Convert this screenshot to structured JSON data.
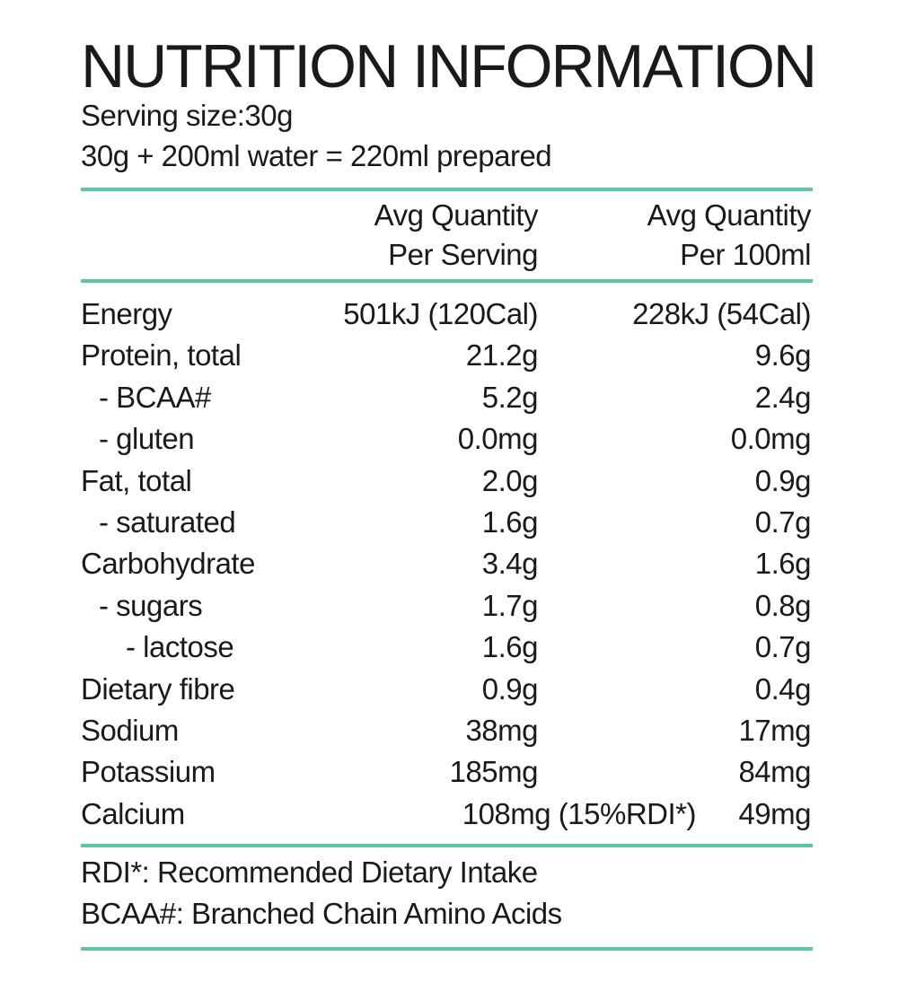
{
  "label": {
    "title": "NUTRITION INFORMATION",
    "serving_size": "Serving size:30g",
    "preparation": "30g + 200ml water = 220ml prepared",
    "accent_color": "#5ec6a8"
  },
  "columns": {
    "per_serving_line1": "Avg Quantity",
    "per_serving_line2": "Per Serving",
    "per_100ml_line1": "Avg Quantity",
    "per_100ml_line2": "Per 100ml"
  },
  "rows": [
    {
      "label": "Energy",
      "indent": 0,
      "per_serving": "501kJ (120Cal)",
      "per_100ml": "228kJ (54Cal)"
    },
    {
      "label": "Protein, total",
      "indent": 0,
      "per_serving": "21.2g",
      "per_100ml": "9.6g"
    },
    {
      "label": "- BCAA#",
      "indent": 1,
      "per_serving": "5.2g",
      "per_100ml": "2.4g"
    },
    {
      "label": "- gluten",
      "indent": 1,
      "per_serving": "0.0mg",
      "per_100ml": "0.0mg"
    },
    {
      "label": "Fat, total",
      "indent": 0,
      "per_serving": "2.0g",
      "per_100ml": "0.9g"
    },
    {
      "label": "- saturated",
      "indent": 1,
      "per_serving": "1.6g",
      "per_100ml": "0.7g"
    },
    {
      "label": "Carbohydrate",
      "indent": 0,
      "per_serving": "3.4g",
      "per_100ml": "1.6g"
    },
    {
      "label": "- sugars",
      "indent": 1,
      "per_serving": "1.7g",
      "per_100ml": "0.8g"
    },
    {
      "label": "- lactose",
      "indent": 2,
      "per_serving": "1.6g",
      "per_100ml": "0.7g"
    },
    {
      "label": "Dietary fibre",
      "indent": 0,
      "per_serving": "0.9g",
      "per_100ml": "0.4g"
    },
    {
      "label": "Sodium",
      "indent": 0,
      "per_serving": "38mg",
      "per_100ml": "17mg"
    },
    {
      "label": "Potassium",
      "indent": 0,
      "per_serving": "185mg",
      "per_100ml": "84mg"
    },
    {
      "label": "Calcium",
      "indent": 0,
      "per_serving": "108mg (15%RDI*)",
      "per_100ml": "49mg"
    }
  ],
  "footnotes": {
    "rdi": "RDI*: Recommended Dietary Intake",
    "bcaa": "BCAA#: Branched Chain Amino Acids"
  }
}
